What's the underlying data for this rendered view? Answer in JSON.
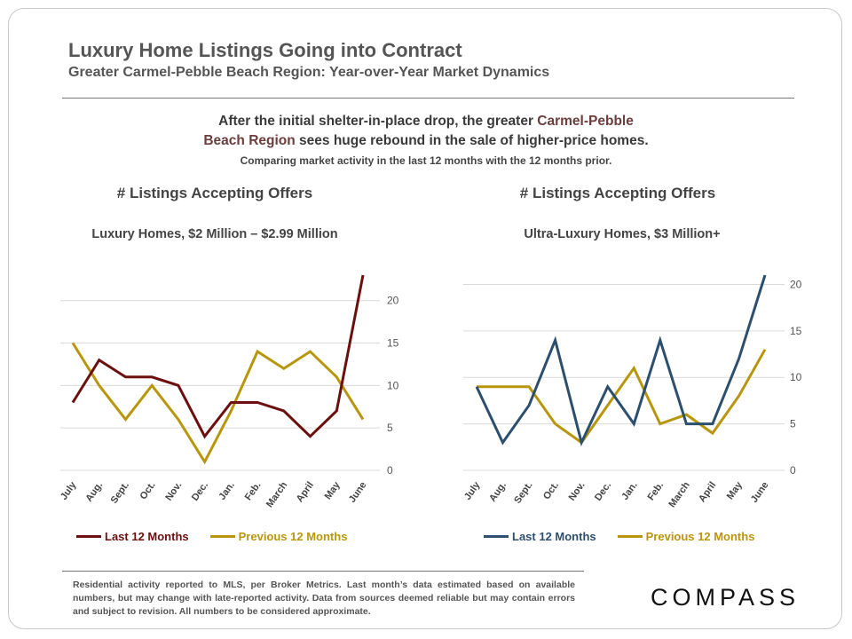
{
  "title": "Luxury Home Listings Going into Contract",
  "subtitle": "Greater Carmel-Pebble  Beach Region: Year-over-Year  Market Dynamics",
  "headline": {
    "line1_prefix": "After the initial shelter-in-place drop, the greater ",
    "line1_accent": "Carmel-Pebble",
    "line2_accent": "Beach Region",
    "line2_suffix": " sees huge rebound in the sale of higher-price homes.",
    "sub": "Comparing market activity in the last 12 months with the 12 months prior."
  },
  "footnote": "Residential activity reported to MLS, per Broker Metrics. Last month’s data estimated based on available numbers, but may change with late-reported activity. Data from sources deemed reliable but may contain errors and subject to revision. All numbers to be considered approximate.",
  "logo": "COMPASS",
  "colors": {
    "gold": "#b8960c",
    "maroon": "#6b0f0f",
    "navy": "#2d4f6e"
  },
  "chart_data": [
    {
      "type": "line",
      "title": "# Listings  Accepting  Offers",
      "subtitle": "Luxury Homes, $2 Million – $2.99 Million",
      "categories": [
        "July",
        "Aug.",
        "Sept.",
        "Oct.",
        "Nov.",
        "Dec.",
        "Jan.",
        "Feb.",
        "March",
        "April",
        "May",
        "June"
      ],
      "yticks": [
        0,
        5,
        10,
        15,
        20
      ],
      "ylim": [
        0,
        23
      ],
      "series": [
        {
          "name": "Last 12 Months",
          "color": "#6b0f0f",
          "values": [
            8,
            13,
            11,
            11,
            10,
            4,
            8,
            8,
            7,
            4,
            7,
            23
          ]
        },
        {
          "name": "Previous 12 Months",
          "color": "#b8960c",
          "values": [
            15,
            10,
            6,
            10,
            6,
            1,
            7,
            14,
            12,
            14,
            11,
            6
          ]
        }
      ]
    },
    {
      "type": "line",
      "title": "# Listings  Accepting  Offers",
      "subtitle": "Ultra-Luxury Homes, $3 Million+",
      "categories": [
        "July",
        "Aug.",
        "Sept.",
        "Oct.",
        "Nov.",
        "Dec.",
        "Jan.",
        "Feb.",
        "March",
        "April",
        "May",
        "June"
      ],
      "yticks": [
        0,
        5,
        10,
        15,
        20
      ],
      "ylim": [
        0,
        21
      ],
      "series": [
        {
          "name": "Last 12 Months",
          "color": "#2d4f6e",
          "values": [
            9,
            3,
            7,
            14,
            3,
            9,
            5,
            14,
            5,
            5,
            12,
            21
          ]
        },
        {
          "name": "Previous 12 Months",
          "color": "#b8960c",
          "values": [
            9,
            9,
            9,
            5,
            3,
            7,
            11,
            5,
            6,
            4,
            8,
            13
          ]
        }
      ]
    }
  ]
}
